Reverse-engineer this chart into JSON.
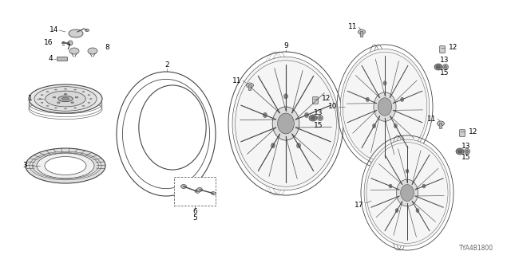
{
  "bg_color": "#ffffff",
  "diagram_code": "TYA4B1800",
  "line_color": "#444444",
  "light_gray": "#cccccc",
  "mid_gray": "#999999",
  "dark_gray": "#555555"
}
